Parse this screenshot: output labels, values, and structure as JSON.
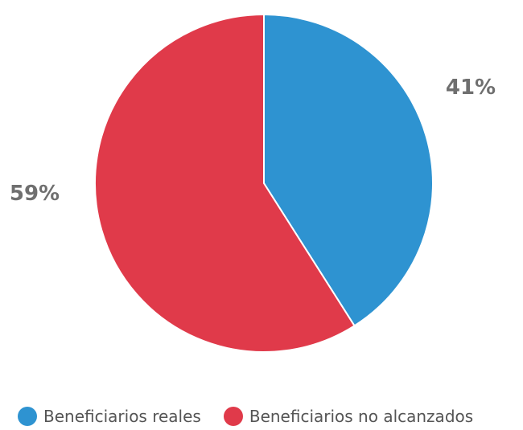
{
  "chart_data": {
    "type": "pie",
    "title": "",
    "slices": [
      {
        "label": "Beneficiarios reales",
        "value": 41,
        "display": "41%",
        "color": "#2e93d1"
      },
      {
        "label": "Beneficiarios no alcanzados",
        "value": 59,
        "display": "59%",
        "color": "#e03a4a"
      }
    ],
    "start": "12 o'clock",
    "direction": "clockwise",
    "legend_position": "bottom-left"
  },
  "legend": {
    "items": [
      {
        "label": "Beneficiarios reales",
        "color": "#2e93d1"
      },
      {
        "label": "Beneficiarios no alcanzados",
        "color": "#e03a4a"
      }
    ]
  }
}
